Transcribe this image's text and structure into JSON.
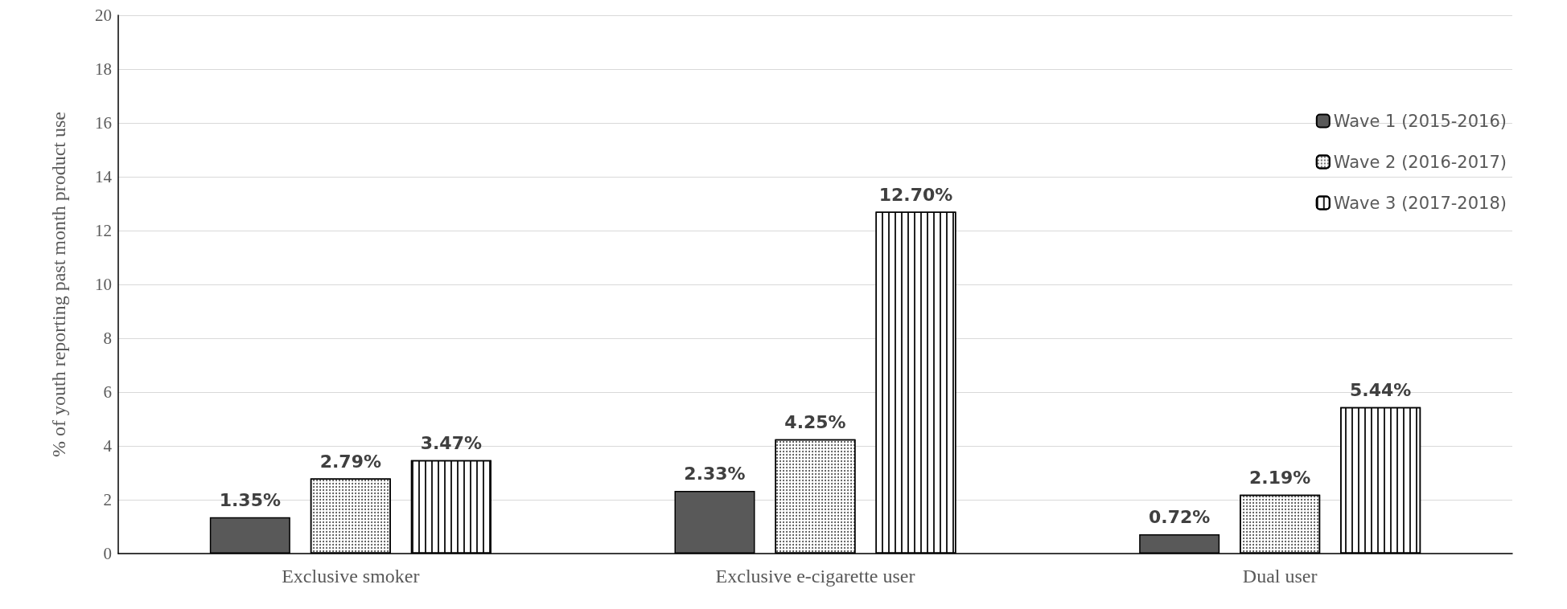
{
  "chart_data": {
    "type": "bar",
    "ylabel": "% of youth reporting past month product use",
    "categories": [
      "Exclusive smoker",
      "Exclusive e-cigarette user",
      "Dual user"
    ],
    "series": [
      {
        "name": "Wave 1 (2015-2016)",
        "color": "#595959",
        "values": [
          1.35,
          2.33,
          0.72
        ],
        "value_labels": [
          "1.35%",
          "2.33%",
          "0.72%"
        ]
      },
      {
        "name": "Wave 2 (2016-2017)",
        "color": "#ffffff",
        "values": [
          2.79,
          4.25,
          2.19
        ],
        "value_labels": [
          "2.79%",
          "4.25%",
          "2.19%"
        ]
      },
      {
        "name": "Wave 3 (2017-2018)",
        "color": "#ffffff",
        "values": [
          3.47,
          12.7,
          5.44
        ],
        "value_labels": [
          "3.47%",
          "12.70%",
          "5.44%"
        ]
      }
    ],
    "ylim": [
      0,
      20
    ],
    "yticks": [
      0,
      2,
      4,
      6,
      8,
      10,
      12,
      14,
      16,
      18,
      20
    ],
    "grid": "y",
    "legend": "top right"
  }
}
